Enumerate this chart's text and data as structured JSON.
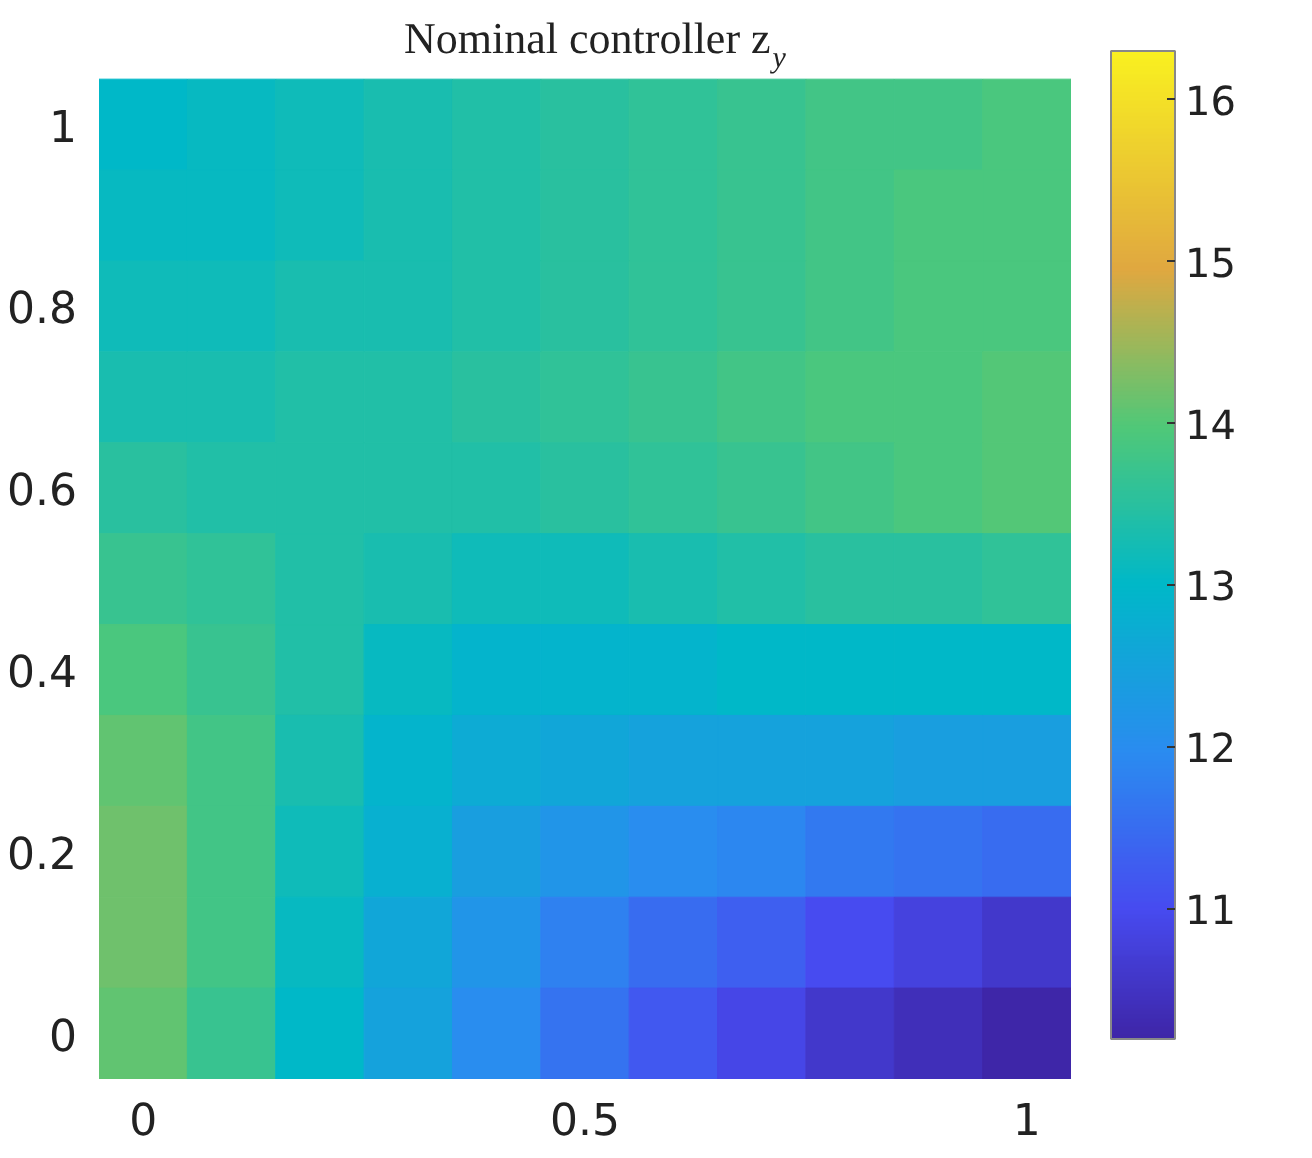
{
  "chart_data": {
    "type": "heatmap",
    "title": "Nominal controller z$_{y}$",
    "categories": [
      "0",
      null,
      null,
      null,
      null,
      "0.5",
      null,
      null,
      null,
      null,
      "1"
    ],
    "y_categories": [
      "1",
      null,
      "0.8",
      null,
      "0.6",
      null,
      "0.4",
      null,
      "0.2",
      null,
      "0"
    ],
    "cells": [
      [
        13.0,
        13.1,
        13.2,
        13.3,
        13.4,
        13.5,
        13.6,
        13.7,
        13.8,
        13.8,
        13.9
      ],
      [
        13.1,
        13.1,
        13.2,
        13.3,
        13.4,
        13.5,
        13.6,
        13.7,
        13.8,
        13.9,
        13.9
      ],
      [
        13.2,
        13.2,
        13.3,
        13.3,
        13.4,
        13.5,
        13.6,
        13.7,
        13.8,
        13.9,
        13.9
      ],
      [
        13.3,
        13.3,
        13.4,
        13.4,
        13.5,
        13.6,
        13.7,
        13.8,
        13.9,
        13.9,
        14.0
      ],
      [
        13.5,
        13.4,
        13.4,
        13.4,
        13.4,
        13.5,
        13.6,
        13.7,
        13.8,
        13.9,
        14.0
      ],
      [
        13.7,
        13.6,
        13.4,
        13.3,
        13.2,
        13.2,
        13.3,
        13.4,
        13.5,
        13.5,
        13.6
      ],
      [
        13.9,
        13.7,
        13.4,
        13.1,
        12.9,
        12.9,
        12.9,
        13.0,
        13.0,
        13.0,
        13.0
      ],
      [
        14.1,
        13.8,
        13.3,
        12.9,
        12.7,
        12.6,
        12.5,
        12.5,
        12.5,
        12.4,
        12.4
      ],
      [
        14.2,
        13.8,
        13.2,
        12.8,
        12.4,
        12.2,
        12.0,
        11.9,
        11.7,
        11.6,
        11.5
      ],
      [
        14.2,
        13.8,
        13.1,
        12.6,
        12.2,
        11.8,
        11.5,
        11.3,
        11.0,
        10.8,
        10.6
      ],
      [
        14.1,
        13.7,
        13.0,
        12.5,
        12.0,
        11.6,
        11.2,
        10.9,
        10.6,
        10.4,
        10.2
      ]
    ],
    "clim": [
      10.2,
      16.3
    ],
    "cticks": [
      11,
      12,
      13,
      14,
      15,
      16
    ]
  }
}
